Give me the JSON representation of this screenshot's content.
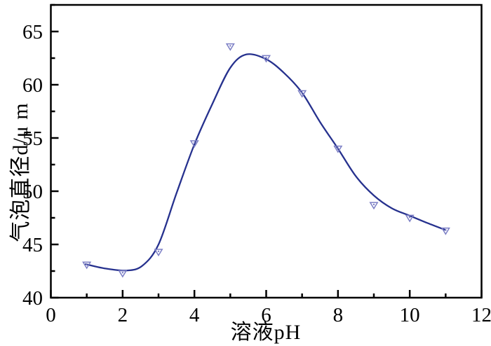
{
  "chart_data": {
    "type": "scatter",
    "title": "",
    "xlabel": "溶液pH",
    "ylabel": "气泡直径d/μ m",
    "xlim": [
      0,
      12
    ],
    "ylim": [
      40,
      67.5
    ],
    "grid": false,
    "legend_position": "none",
    "x_major_ticks": [
      0,
      2,
      4,
      6,
      8,
      10,
      12
    ],
    "x_minor_ticks": [
      1,
      3,
      5,
      7,
      9,
      11
    ],
    "y_major_ticks": [
      40,
      45,
      50,
      55,
      60,
      65
    ],
    "y_minor_ticks": [
      42.5,
      47.5,
      52.5,
      57.5,
      62.5,
      67.5
    ],
    "series": [
      {
        "name": "bubble-diameter-vs-pH",
        "marker": "open-down-triangle",
        "x": [
          1,
          2,
          3,
          4,
          5,
          6,
          7,
          8,
          9,
          10,
          11
        ],
        "y": [
          43.1,
          42.3,
          44.3,
          54.5,
          63.6,
          62.5,
          59.2,
          54.0,
          48.7,
          47.5,
          46.3
        ]
      }
    ],
    "fit_curve": {
      "name": "smooth-fit",
      "peak": {
        "x": 5.45,
        "y": 62.85
      },
      "points": [
        [
          0.97,
          43.15
        ],
        [
          1.5,
          42.75
        ],
        [
          2.1,
          42.55
        ],
        [
          2.55,
          43.0
        ],
        [
          3.0,
          45.0
        ],
        [
          3.5,
          49.8
        ],
        [
          4.0,
          54.4
        ],
        [
          4.5,
          58.2
        ],
        [
          5.0,
          61.6
        ],
        [
          5.45,
          62.85
        ],
        [
          6.0,
          62.4
        ],
        [
          6.5,
          61.1
        ],
        [
          7.0,
          59.25
        ],
        [
          7.5,
          56.5
        ],
        [
          8.0,
          54.0
        ],
        [
          8.5,
          51.4
        ],
        [
          9.0,
          49.6
        ],
        [
          9.5,
          48.4
        ],
        [
          10.0,
          47.7
        ],
        [
          10.5,
          47.0
        ],
        [
          11.0,
          46.35
        ]
      ]
    },
    "colors": {
      "curve": "#26318e",
      "marker": "#7c7fc5",
      "axis": "#000000",
      "background": "#ffffff"
    }
  }
}
